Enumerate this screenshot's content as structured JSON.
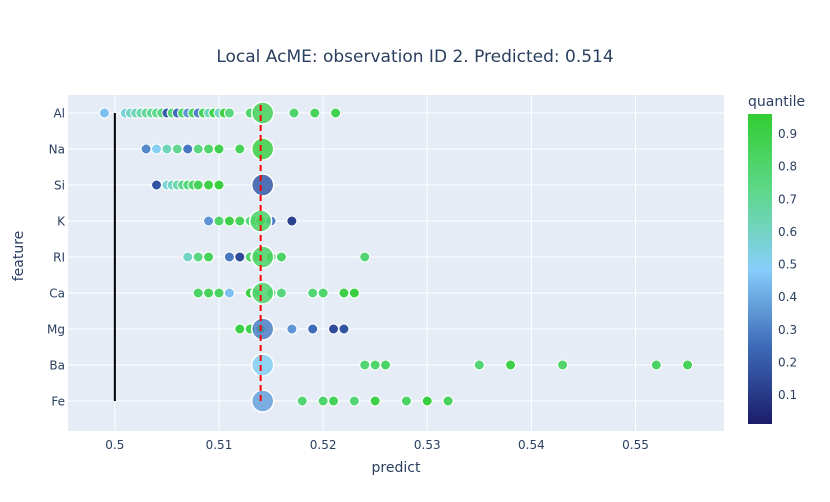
{
  "colors": {
    "plot_bg": "#e5ecf6",
    "grid": "#ffffff",
    "text": "#2a3f5f",
    "ref_line": "#ff0000",
    "base_line": "#000000",
    "marker_edge": "#ffffff"
  },
  "chart_data": {
    "type": "scatter",
    "title": "Local AcME: observation ID 2. Predicted: 0.514",
    "xlabel": "predict",
    "ylabel": "feature",
    "xlim": [
      0.4955,
      0.5585
    ],
    "x_ticks": [
      0.5,
      0.51,
      0.52,
      0.53,
      0.54,
      0.55
    ],
    "x_tick_labels": [
      "0.5",
      "0.51",
      "0.52",
      "0.53",
      "0.54",
      "0.55"
    ],
    "categories": [
      "Al",
      "Na",
      "Si",
      "K",
      "RI",
      "Ca",
      "Mg",
      "Ba",
      "Fe"
    ],
    "predicted": 0.514,
    "baseline_x": 0.5,
    "grid": true,
    "colorbar": {
      "title": "quantile",
      "range": [
        0.01,
        0.96
      ],
      "ticks": [
        0.1,
        0.2,
        0.3,
        0.4,
        0.5,
        0.6,
        0.7,
        0.8,
        0.9
      ],
      "tick_labels": [
        "0.1",
        "0.2",
        "0.3",
        "0.4",
        "0.5",
        "0.6",
        "0.7",
        "0.8",
        "0.9"
      ],
      "colorscale": [
        [
          0,
          "#1b1d6b"
        ],
        [
          0.25,
          "#3d6ab8"
        ],
        [
          0.5,
          "#87cefa"
        ],
        [
          0.75,
          "#5ed88a"
        ],
        [
          1,
          "#32cd32"
        ]
      ]
    },
    "series": [
      {
        "feature": "Al",
        "x": [
          0.499,
          0.501,
          0.5015,
          0.502,
          0.5025,
          0.503,
          0.5035,
          0.504,
          0.5045,
          0.505,
          0.5055,
          0.506,
          0.5065,
          0.507,
          0.5075,
          0.508,
          0.5085,
          0.509,
          0.5095,
          0.51,
          0.5105,
          0.511,
          0.513,
          0.5172,
          0.5192,
          0.5212
        ],
        "quantile": [
          0.45,
          0.55,
          0.6,
          0.62,
          0.65,
          0.68,
          0.7,
          0.72,
          0.75,
          0.2,
          0.78,
          0.25,
          0.8,
          0.35,
          0.82,
          0.3,
          0.85,
          0.62,
          0.88,
          0.6,
          0.9,
          0.75,
          0.8,
          0.8,
          0.85,
          0.88
        ],
        "current": 0.5142,
        "current_quantile": 0.85
      },
      {
        "feature": "Na",
        "x": [
          0.503,
          0.504,
          0.505,
          0.506,
          0.507,
          0.508,
          0.509,
          0.51,
          0.512
        ],
        "quantile": [
          0.32,
          0.5,
          0.62,
          0.7,
          0.28,
          0.75,
          0.8,
          0.88,
          0.85
        ],
        "current": 0.5142,
        "current_quantile": 0.9
      },
      {
        "feature": "Si",
        "x": [
          0.504,
          0.505,
          0.5055,
          0.506,
          0.5065,
          0.507,
          0.5075,
          0.508,
          0.509,
          0.51
        ],
        "quantile": [
          0.18,
          0.55,
          0.6,
          0.65,
          0.7,
          0.75,
          0.8,
          0.85,
          0.9,
          0.92
        ],
        "current": 0.5142,
        "current_quantile": 0.2
      },
      {
        "feature": "K",
        "x": [
          0.509,
          0.51,
          0.511,
          0.512,
          0.513,
          0.5135,
          0.514,
          0.515,
          0.517
        ],
        "quantile": [
          0.35,
          0.8,
          0.9,
          0.85,
          0.75,
          0.72,
          0.95,
          0.3,
          0.12
        ],
        "current": 0.514,
        "current_quantile": 0.82
      },
      {
        "feature": "RI",
        "x": [
          0.507,
          0.508,
          0.509,
          0.511,
          0.512,
          0.513,
          0.5135,
          0.515,
          0.516,
          0.524
        ],
        "quantile": [
          0.6,
          0.75,
          0.85,
          0.28,
          0.15,
          0.8,
          0.85,
          0.9,
          0.82,
          0.78
        ],
        "current": 0.5142,
        "current_quantile": 0.82
      },
      {
        "feature": "Ca",
        "x": [
          0.508,
          0.509,
          0.51,
          0.511,
          0.513,
          0.5135,
          0.515,
          0.516,
          0.519,
          0.52,
          0.522,
          0.523
        ],
        "quantile": [
          0.82,
          0.85,
          0.82,
          0.45,
          0.9,
          0.85,
          0.85,
          0.75,
          0.78,
          0.8,
          0.9,
          0.92
        ],
        "current": 0.5142,
        "current_quantile": 0.8
      },
      {
        "feature": "Mg",
        "x": [
          0.512,
          0.513,
          0.514,
          0.517,
          0.519,
          0.521,
          0.522
        ],
        "quantile": [
          0.9,
          0.88,
          0.92,
          0.35,
          0.25,
          0.15,
          0.18
        ],
        "current": 0.5142,
        "current_quantile": 0.3
      },
      {
        "feature": "Ba",
        "x": [
          0.524,
          0.525,
          0.526,
          0.535,
          0.538,
          0.543,
          0.552,
          0.555
        ],
        "quantile": [
          0.78,
          0.8,
          0.82,
          0.78,
          0.9,
          0.8,
          0.82,
          0.85
        ],
        "current": 0.5142,
        "current_quantile": 0.5
      },
      {
        "feature": "Fe",
        "x": [
          0.518,
          0.52,
          0.521,
          0.523,
          0.525,
          0.528,
          0.53,
          0.532
        ],
        "quantile": [
          0.78,
          0.8,
          0.85,
          0.78,
          0.9,
          0.82,
          0.92,
          0.85
        ],
        "current": 0.5142,
        "current_quantile": 0.38
      }
    ]
  }
}
